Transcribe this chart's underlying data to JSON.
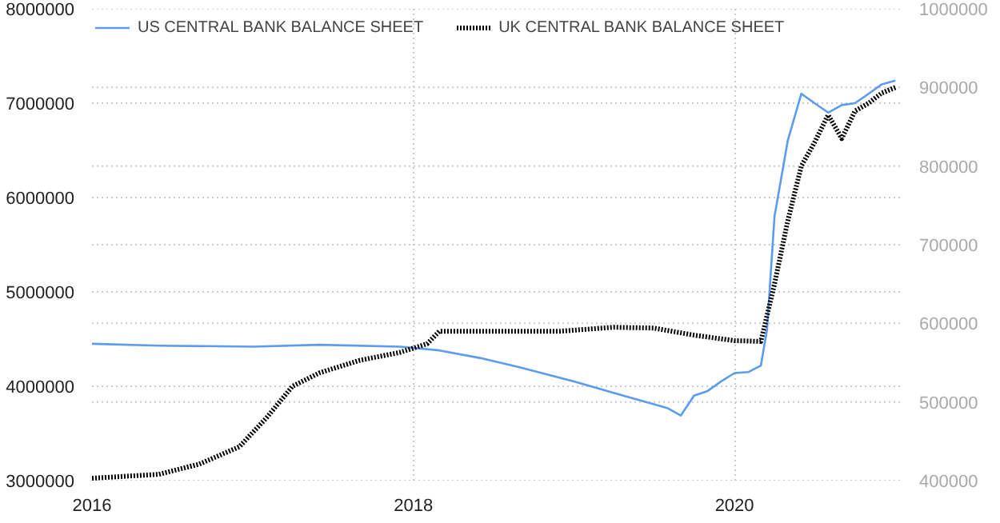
{
  "chart_data": {
    "type": "line",
    "xlim": [
      "2016-01-01",
      "2021-01-15"
    ],
    "xticks": [
      "2016",
      "2018",
      "2020"
    ],
    "ylim": [
      3000000,
      8000000
    ],
    "yticks": [
      3000000,
      4000000,
      5000000,
      6000000,
      7000000,
      8000000
    ],
    "y2lim": [
      400000,
      1000000
    ],
    "y2ticks": [
      400000,
      500000,
      600000,
      700000,
      800000,
      900000,
      1000000
    ],
    "grid": true,
    "legend": "top left",
    "series": [
      {
        "name": "US CENTRAL BANK BALANCE SHEET",
        "color": "#5b9bf0",
        "line_style": "solid",
        "x": [
          "2016-01",
          "2016-06",
          "2017-01",
          "2017-06",
          "2017-12",
          "2018-03",
          "2018-06",
          "2018-09",
          "2019-01",
          "2019-04",
          "2019-06",
          "2019-08",
          "2019-09",
          "2019-10",
          "2019-11",
          "2019-12",
          "2020-01",
          "2020-02",
          "2020-03-01",
          "2020-03-15",
          "2020-04",
          "2020-05",
          "2020-06",
          "2020-07",
          "2020-08",
          "2020-09",
          "2020-10",
          "2020-11",
          "2020-12",
          "2021-01"
        ],
        "values": [
          4450000,
          4430000,
          4420000,
          4440000,
          4420000,
          4380000,
          4300000,
          4200000,
          4050000,
          3930000,
          3850000,
          3770000,
          3690000,
          3900000,
          3950000,
          4050000,
          4140000,
          4150000,
          4220000,
          4600000,
          5800000,
          6600000,
          7100000,
          7000000,
          6900000,
          6980000,
          7000000,
          7100000,
          7200000,
          7240000
        ]
      },
      {
        "name": "UK CENTRAL BANK BALANCE SHEET",
        "color": "#000000",
        "axis": "y2",
        "line_style": "dotted",
        "x": [
          "2016-01",
          "2016-06",
          "2016-09",
          "2016-12",
          "2017-02",
          "2017-04",
          "2017-06",
          "2017-09",
          "2017-12",
          "2018-02",
          "2018-03",
          "2018-06",
          "2018-12",
          "2019-04",
          "2019-07",
          "2019-10",
          "2020-01",
          "2020-03",
          "2020-04",
          "2020-05",
          "2020-06",
          "2020-07",
          "2020-08",
          "2020-09",
          "2020-10",
          "2020-11",
          "2020-12",
          "2021-01"
        ],
        "values": [
          403000,
          408000,
          421000,
          443000,
          480000,
          520000,
          537000,
          553000,
          563000,
          574000,
          590000,
          590000,
          590000,
          595000,
          594000,
          585000,
          578000,
          577000,
          650000,
          730000,
          800000,
          830000,
          865000,
          835000,
          870000,
          880000,
          893000,
          900000
        ]
      }
    ]
  }
}
